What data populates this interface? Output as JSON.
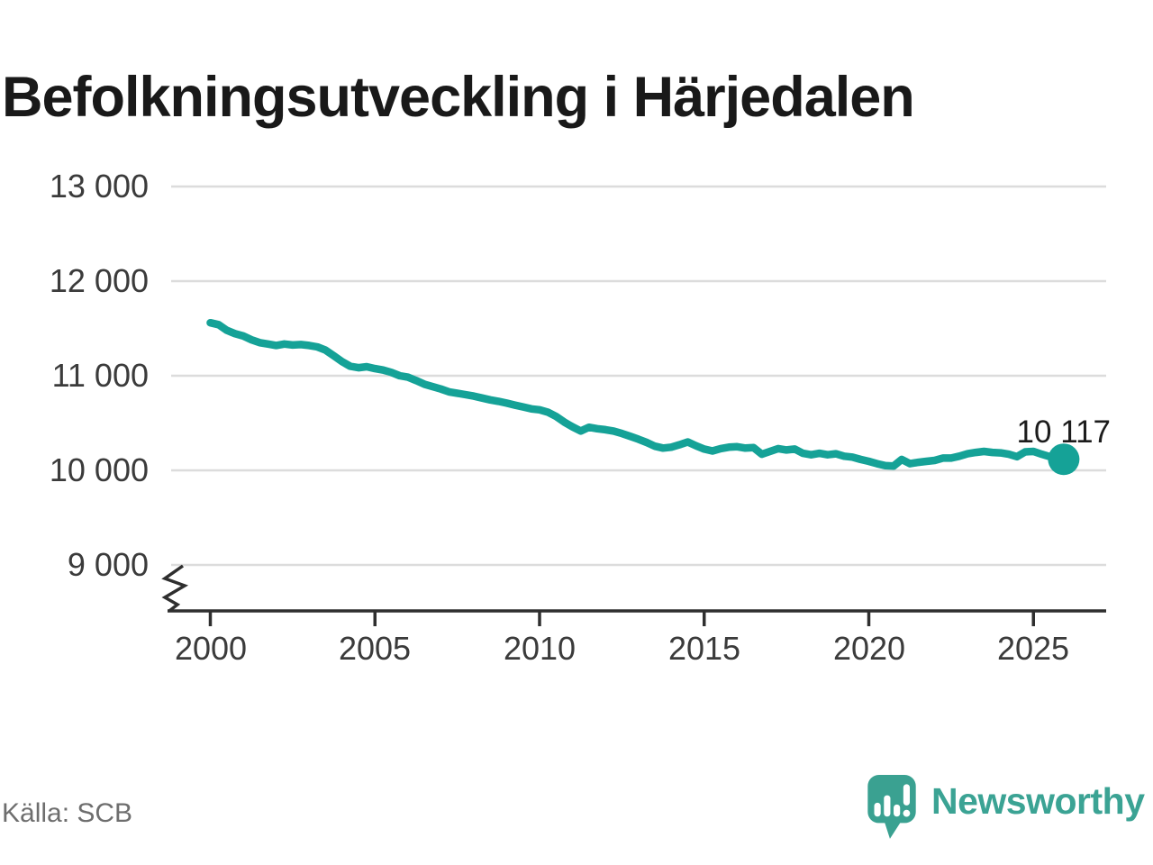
{
  "chart_data": {
    "type": "line",
    "title": "Befolkningsutveckling i Härjedalen",
    "source": "Källa: SCB",
    "end_label": "10 117",
    "last_value": 10117,
    "line_color": "#15a297",
    "x_ticks": [
      "2000",
      "2005",
      "2010",
      "2015",
      "2020",
      "2025"
    ],
    "x_tick_values": [
      2000,
      2005,
      2010,
      2015,
      2020,
      2025
    ],
    "y_ticks": [
      "13 000",
      "12 000",
      "11 000",
      "10 000",
      "9 000"
    ],
    "y_tick_values": [
      13000,
      12000,
      11000,
      10000,
      9000
    ],
    "ylim": [
      9000,
      13000
    ],
    "y_axis_break": true,
    "grid": "horizontal",
    "legend": "none",
    "colors": {
      "grid": "#dcdcdc",
      "axis": "#2f2f2f",
      "tick_text": "#3b3b3b"
    },
    "points": [
      [
        2000.0,
        11560
      ],
      [
        2000.25,
        11540
      ],
      [
        2000.5,
        11480
      ],
      [
        2000.75,
        11445
      ],
      [
        2001.0,
        11420
      ],
      [
        2001.25,
        11380
      ],
      [
        2001.5,
        11350
      ],
      [
        2001.75,
        11335
      ],
      [
        2002.0,
        11320
      ],
      [
        2002.25,
        11335
      ],
      [
        2002.5,
        11325
      ],
      [
        2002.75,
        11330
      ],
      [
        2003.0,
        11320
      ],
      [
        2003.25,
        11305
      ],
      [
        2003.5,
        11270
      ],
      [
        2003.75,
        11210
      ],
      [
        2004.0,
        11150
      ],
      [
        2004.25,
        11100
      ],
      [
        2004.5,
        11085
      ],
      [
        2004.75,
        11095
      ],
      [
        2005.0,
        11075
      ],
      [
        2005.25,
        11060
      ],
      [
        2005.5,
        11035
      ],
      [
        2005.75,
        11000
      ],
      [
        2006.0,
        10985
      ],
      [
        2006.25,
        10950
      ],
      [
        2006.5,
        10910
      ],
      [
        2006.75,
        10885
      ],
      [
        2007.0,
        10860
      ],
      [
        2007.25,
        10830
      ],
      [
        2007.5,
        10815
      ],
      [
        2007.75,
        10800
      ],
      [
        2008.0,
        10785
      ],
      [
        2008.25,
        10765
      ],
      [
        2008.5,
        10745
      ],
      [
        2008.75,
        10730
      ],
      [
        2009.0,
        10710
      ],
      [
        2009.25,
        10690
      ],
      [
        2009.5,
        10670
      ],
      [
        2009.75,
        10650
      ],
      [
        2010.0,
        10640
      ],
      [
        2010.25,
        10615
      ],
      [
        2010.5,
        10570
      ],
      [
        2010.75,
        10510
      ],
      [
        2011.0,
        10460
      ],
      [
        2011.25,
        10415
      ],
      [
        2011.5,
        10455
      ],
      [
        2011.75,
        10440
      ],
      [
        2012.0,
        10430
      ],
      [
        2012.25,
        10415
      ],
      [
        2012.5,
        10390
      ],
      [
        2012.75,
        10360
      ],
      [
        2013.0,
        10330
      ],
      [
        2013.25,
        10295
      ],
      [
        2013.5,
        10255
      ],
      [
        2013.75,
        10235
      ],
      [
        2014.0,
        10245
      ],
      [
        2014.25,
        10270
      ],
      [
        2014.5,
        10300
      ],
      [
        2014.75,
        10260
      ],
      [
        2015.0,
        10225
      ],
      [
        2015.25,
        10205
      ],
      [
        2015.5,
        10230
      ],
      [
        2015.75,
        10245
      ],
      [
        2016.0,
        10250
      ],
      [
        2016.25,
        10235
      ],
      [
        2016.5,
        10240
      ],
      [
        2016.75,
        10170
      ],
      [
        2017.0,
        10200
      ],
      [
        2017.25,
        10230
      ],
      [
        2017.5,
        10215
      ],
      [
        2017.75,
        10225
      ],
      [
        2018.0,
        10180
      ],
      [
        2018.25,
        10165
      ],
      [
        2018.5,
        10180
      ],
      [
        2018.75,
        10165
      ],
      [
        2019.0,
        10175
      ],
      [
        2019.25,
        10150
      ],
      [
        2019.5,
        10140
      ],
      [
        2019.75,
        10115
      ],
      [
        2020.0,
        10095
      ],
      [
        2020.25,
        10070
      ],
      [
        2020.5,
        10050
      ],
      [
        2020.75,
        10045
      ],
      [
        2021.0,
        10115
      ],
      [
        2021.25,
        10070
      ],
      [
        2021.5,
        10085
      ],
      [
        2021.75,
        10095
      ],
      [
        2022.0,
        10105
      ],
      [
        2022.25,
        10130
      ],
      [
        2022.5,
        10130
      ],
      [
        2022.75,
        10150
      ],
      [
        2023.0,
        10175
      ],
      [
        2023.25,
        10190
      ],
      [
        2023.5,
        10200
      ],
      [
        2023.75,
        10190
      ],
      [
        2024.0,
        10185
      ],
      [
        2024.25,
        10170
      ],
      [
        2024.5,
        10145
      ],
      [
        2024.75,
        10195
      ],
      [
        2025.0,
        10200
      ],
      [
        2025.25,
        10170
      ],
      [
        2025.5,
        10145
      ],
      [
        2025.75,
        10150
      ],
      [
        2025.92,
        10117
      ]
    ]
  },
  "branding": {
    "logo_text": "Newsworthy",
    "logo_color": "#3ba394"
  }
}
